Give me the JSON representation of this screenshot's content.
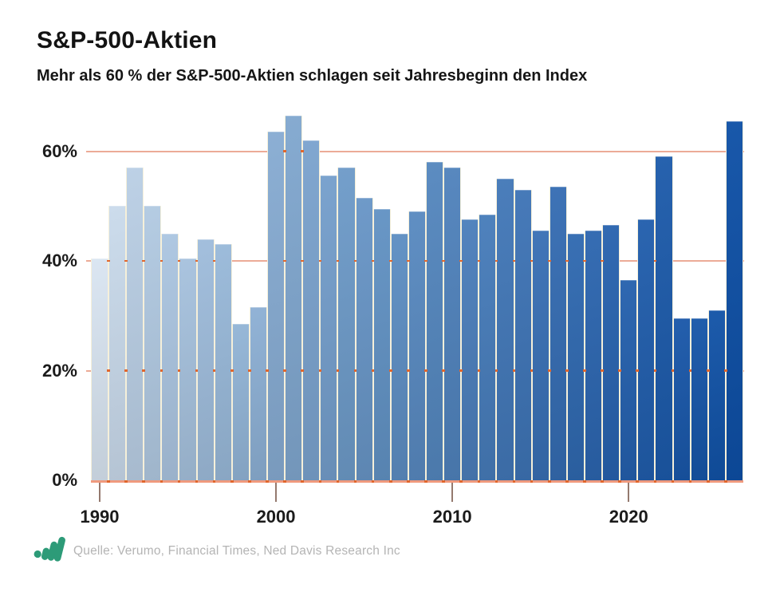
{
  "header": {
    "title": "S&P-500-Aktien",
    "subtitle": "Mehr als 60 % der S&P-500-Aktien schlagen seit Jahresbeginn den Index"
  },
  "footer": {
    "source": "Quelle: Verumo, Financial Times, Ned Davis Research Inc",
    "logo_name": "verumo-growth-chart-logo",
    "logo_color": "#2d9b78"
  },
  "chart_data": {
    "type": "bar",
    "title": "S&P-500-Aktien",
    "subtitle": "Mehr als 60 % der S&P-500-Aktien schlagen seit Jahresbeginn den Index",
    "xlabel": "",
    "ylabel": "",
    "unit": "%",
    "ylim": [
      0,
      67.2
    ],
    "grid": true,
    "categories": [
      1990,
      1991,
      1992,
      1993,
      1994,
      1995,
      1996,
      1997,
      1998,
      1999,
      2000,
      2001,
      2002,
      2003,
      2004,
      2005,
      2006,
      2007,
      2008,
      2009,
      2010,
      2011,
      2012,
      2013,
      2014,
      2015,
      2016,
      2017,
      2018,
      2019,
      2020,
      2021,
      2022,
      2023,
      2024,
      2025,
      2026
    ],
    "values": [
      40.5,
      50,
      57,
      50,
      45,
      40.5,
      44,
      43,
      28.5,
      31.5,
      63.5,
      66.5,
      62,
      55.5,
      57,
      51.5,
      49.5,
      45,
      49,
      58,
      57,
      47.5,
      48.5,
      55,
      53,
      45.5,
      53.5,
      45,
      45.5,
      46.5,
      36.5,
      47.5,
      59,
      29.5,
      29.5,
      31,
      65.5
    ],
    "yticks": [
      {
        "value": 0,
        "label": "0%"
      },
      {
        "value": 20,
        "label": "20%"
      },
      {
        "value": 40,
        "label": "40%"
      },
      {
        "value": 60,
        "label": "60%"
      }
    ],
    "xticks": [
      {
        "year": 1990,
        "label": "1990"
      },
      {
        "year": 2000,
        "label": "2000"
      },
      {
        "year": 2010,
        "label": "2010"
      },
      {
        "year": 2020,
        "label": "2020"
      }
    ],
    "colors": {
      "bar_gradient_stops": [
        {
          "t": 0,
          "c": "#d9e5f1"
        },
        {
          "t": 0.06,
          "c": "#b6cde4"
        },
        {
          "t": 0.45,
          "c": "#6090c3"
        },
        {
          "t": 0.75,
          "c": "#2f68b0"
        },
        {
          "t": 1,
          "c": "#0d4fa6"
        }
      ],
      "gridline": "#ecab97",
      "baseline": "#ef9a7e",
      "gap_dash": "#e0662d",
      "bar_gap": "#f6f0da",
      "axis_tick": "#94796e",
      "text": "#1b1b1b",
      "source_text": "#b4b4b4"
    }
  }
}
